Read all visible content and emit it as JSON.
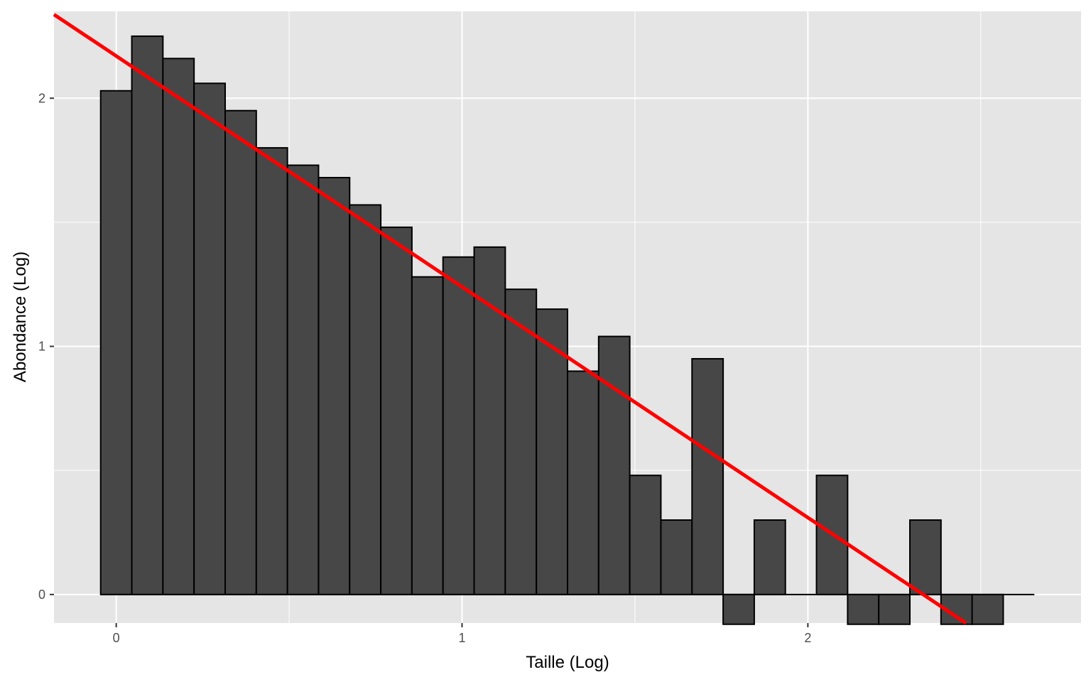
{
  "chart_data": {
    "type": "bar",
    "title": "",
    "xlabel": "Taille (Log)",
    "ylabel": "Abondance (Log)",
    "bin_width": 0.09,
    "bin_centers": [
      0,
      0.09,
      0.18,
      0.27,
      0.36,
      0.45,
      0.54,
      0.63,
      0.72,
      0.81,
      0.9,
      0.99,
      1.08,
      1.17,
      1.26,
      1.35,
      1.44,
      1.53,
      1.62,
      1.71,
      1.8,
      1.89,
      1.98,
      2.07,
      2.16,
      2.25,
      2.34,
      2.43,
      2.52,
      2.61
    ],
    "values": [
      2.03,
      2.25,
      2.16,
      2.06,
      1.95,
      1.8,
      1.73,
      1.68,
      1.57,
      1.48,
      1.28,
      1.36,
      1.4,
      1.23,
      1.15,
      0.9,
      1.04,
      0.48,
      0.3,
      0.95,
      -0.12,
      0.3,
      0,
      0.48,
      -0.12,
      -0.12,
      0.3,
      -0.12,
      -0.12,
      0
    ],
    "regression_line": {
      "intercept": 2.17,
      "slope": -0.93,
      "color": "#ff0000"
    },
    "x_ticks": [
      0,
      1,
      2
    ],
    "y_ticks": [
      0,
      1,
      2
    ],
    "xlim": [
      -0.18,
      2.79
    ],
    "ylim": [
      -0.115,
      2.35
    ],
    "grid": true,
    "legend": "none",
    "colors": {
      "panel": "#e5e5e5",
      "grid": "#ffffff",
      "bar_fill": "#474747",
      "bar_outline": "#000000"
    }
  }
}
